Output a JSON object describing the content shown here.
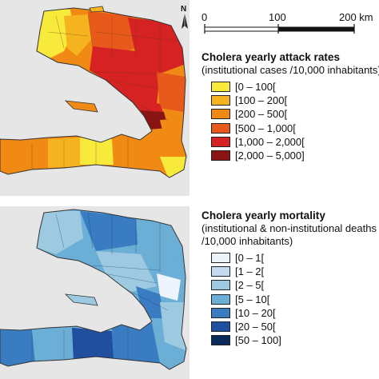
{
  "scale_bar": {
    "labels": [
      "0",
      "100",
      "200 km"
    ]
  },
  "north_arrow": {
    "label": "N"
  },
  "attack_rates": {
    "title": "Cholera yearly attack rates",
    "subtitle": "(institutional cases /10,000 inhabitants)",
    "classes": [
      {
        "label": "[0 – 100[",
        "color": "#f7ea3b"
      },
      {
        "label": "[100 – 200[",
        "color": "#f6b320"
      },
      {
        "label": "[200 – 500[",
        "color": "#f08a14"
      },
      {
        "label": "[500 – 1,000[",
        "color": "#e85a1c"
      },
      {
        "label": "[1,000 – 2,000[",
        "color": "#d62222"
      },
      {
        "label": "[2,000 – 5,000]",
        "color": "#8a1414"
      }
    ]
  },
  "mortality": {
    "title": "Cholera yearly mortality",
    "subtitle_line1": "(institutional & non-institutional deaths",
    "subtitle_line2": "/10,000 inhabitants)",
    "classes": [
      {
        "label": "[0 – 1[",
        "color": "#eef4fb"
      },
      {
        "label": "[1 – 2[",
        "color": "#c6dbef"
      },
      {
        "label": "[2 – 5[",
        "color": "#9ecae1"
      },
      {
        "label": "[5 – 10[",
        "color": "#6baed6"
      },
      {
        "label": "[10 – 20[",
        "color": "#3a7cc2"
      },
      {
        "label": "[20 – 50[",
        "color": "#1f4f9e"
      },
      {
        "label": "[50 – 100]",
        "color": "#0b2a5c"
      }
    ]
  }
}
